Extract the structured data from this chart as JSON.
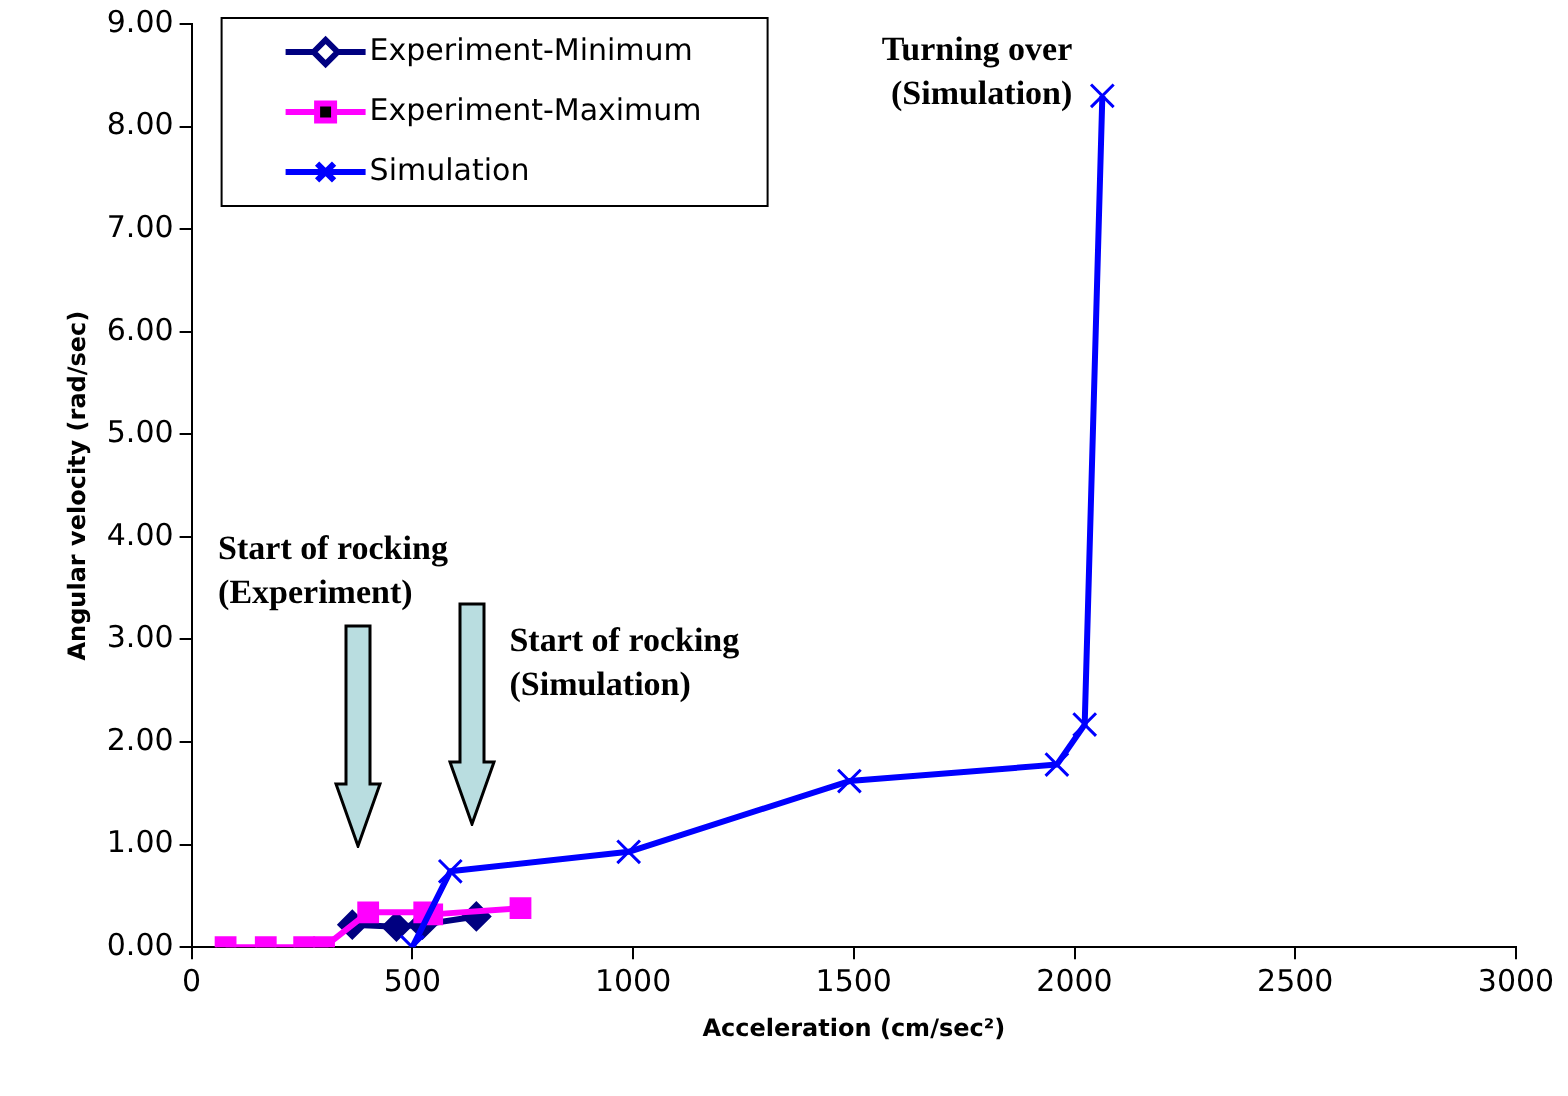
{
  "chart_data": {
    "type": "line",
    "xlabel": "Acceleration (cm/sec²)",
    "ylabel": "Angular velocity (rad/sec)",
    "xlim": [
      0,
      3000
    ],
    "xticks": [
      0,
      500,
      1000,
      1500,
      2000,
      2500,
      3000
    ],
    "ylim": [
      0,
      9
    ],
    "yticks": [
      {
        "value": 0,
        "label": "0.00"
      },
      {
        "value": 1,
        "label": "1.00"
      },
      {
        "value": 2,
        "label": "2.00"
      },
      {
        "value": 3,
        "label": "3.00"
      },
      {
        "value": 4,
        "label": "4.00"
      },
      {
        "value": 5,
        "label": "5.00"
      },
      {
        "value": 6,
        "label": "6.00"
      },
      {
        "value": 7,
        "label": "7.00"
      },
      {
        "value": 8,
        "label": "8.00"
      },
      {
        "value": 9,
        "label": "9.00"
      }
    ],
    "grid": false,
    "legend": "top left",
    "line_style": "solid",
    "series": [
      {
        "name": "Experiment-Minimum",
        "color": "#000080",
        "marker": "diamond",
        "x": [
          364,
          464,
          523,
          645
        ],
        "values": [
          0.22,
          0.2,
          0.22,
          0.3
        ]
      },
      {
        "name": "Experiment-Maximum",
        "color": "#ff00ff",
        "marker": "square",
        "x": [
          77,
          168,
          255,
          300,
          400,
          527,
          545,
          745
        ],
        "values": [
          0,
          0,
          0,
          0,
          0.34,
          0.34,
          0.32,
          0.38
        ]
      },
      {
        "name": "Simulation",
        "color": "#0000ff",
        "marker": "cross",
        "x": [
          500,
          586,
          990,
          1490,
          1960,
          2023,
          2063
        ],
        "values": [
          0,
          0.74,
          0.93,
          1.62,
          1.78,
          2.17,
          8.3
        ]
      }
    ],
    "annotations": [
      "Start of rocking\n(Experiment)",
      "Start of rocking\n(Simulation)",
      "Turning over\n(Simulation)"
    ]
  }
}
